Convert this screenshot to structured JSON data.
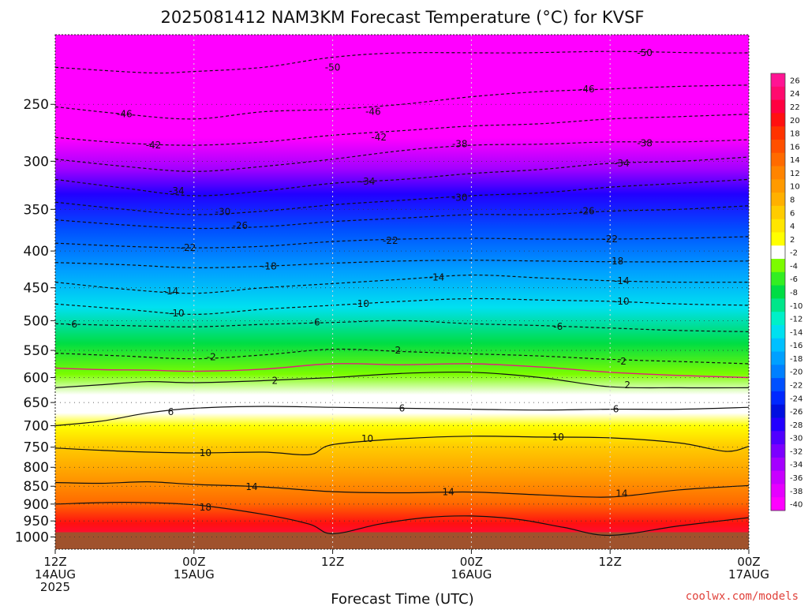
{
  "chart_data": {
    "type": "area",
    "title": "2025081412 NAM3KM Forecast Temperature (°C) for KVSF",
    "xlabel": "Forecast Time (UTC)",
    "ylabel": "",
    "credit": "coolwx.com/models",
    "x_ticks": [
      {
        "hour": 0,
        "line1": "12Z",
        "line2": "14AUG",
        "line3": "2025"
      },
      {
        "hour": 12,
        "line1": "00Z",
        "line2": "15AUG",
        "line3": ""
      },
      {
        "hour": 24,
        "line1": "12Z",
        "line2": "",
        "line3": ""
      },
      {
        "hour": 36,
        "line1": "00Z",
        "line2": "16AUG",
        "line3": ""
      },
      {
        "hour": 48,
        "line1": "12Z",
        "line2": "",
        "line3": ""
      },
      {
        "hour": 60,
        "line1": "00Z",
        "line2": "17AUG",
        "line3": ""
      }
    ],
    "xlim": [
      0,
      60
    ],
    "y_ticks": [
      250,
      300,
      350,
      400,
      450,
      500,
      550,
      600,
      650,
      700,
      750,
      800,
      850,
      900,
      950,
      1000
    ],
    "ylim": [
      1040,
      200
    ],
    "y_scale": "log-pressure",
    "colorbar": {
      "labels": [
        26,
        24,
        22,
        20,
        18,
        16,
        14,
        12,
        10,
        8,
        6,
        4,
        2,
        -2,
        -4,
        -6,
        -8,
        -10,
        -12,
        -14,
        -16,
        -18,
        -20,
        -22,
        -24,
        -26,
        -28,
        -30,
        -32,
        -34,
        -36,
        -38,
        -40
      ],
      "colors": [
        "#ff1493",
        "#ff0a6e",
        "#ff0040",
        "#ff1010",
        "#ff3300",
        "#ff5000",
        "#ff6a00",
        "#ff8400",
        "#ff9a00",
        "#ffb000",
        "#ffcc00",
        "#ffe600",
        "#ffff00",
        "#ffffff",
        "#7cfc00",
        "#33ee22",
        "#00dd44",
        "#00e68a",
        "#00f0c8",
        "#00e0f0",
        "#00c0ff",
        "#00a0ff",
        "#0080ff",
        "#0050ff",
        "#0028ff",
        "#0010e0",
        "#2200ff",
        "#5000ff",
        "#7c00ff",
        "#a400ff",
        "#c800ff",
        "#e600ff",
        "#ff00ff"
      ]
    },
    "series": [
      {
        "level": -50,
        "points": [
          [
            0,
            222
          ],
          [
            8,
            226
          ],
          [
            12,
            225
          ],
          [
            18,
            222
          ],
          [
            24,
            215
          ],
          [
            30,
            212
          ],
          [
            40,
            212
          ],
          [
            48,
            211
          ],
          [
            56,
            212
          ],
          [
            60,
            212
          ]
        ]
      },
      {
        "level": -46,
        "points": [
          [
            0,
            252
          ],
          [
            6,
            258
          ],
          [
            12,
            262
          ],
          [
            18,
            256
          ],
          [
            24,
            254
          ],
          [
            30,
            250
          ],
          [
            36,
            244
          ],
          [
            42,
            240
          ],
          [
            48,
            238
          ],
          [
            54,
            236
          ],
          [
            60,
            235
          ]
        ]
      },
      {
        "level": -42,
        "points": [
          [
            0,
            278
          ],
          [
            6,
            283
          ],
          [
            12,
            285
          ],
          [
            18,
            282
          ],
          [
            24,
            276
          ],
          [
            30,
            272
          ],
          [
            36,
            268
          ],
          [
            42,
            266
          ],
          [
            48,
            262
          ],
          [
            54,
            260
          ],
          [
            60,
            258
          ]
        ]
      },
      {
        "level": -38,
        "points": [
          [
            0,
            298
          ],
          [
            6,
            305
          ],
          [
            12,
            310
          ],
          [
            18,
            305
          ],
          [
            24,
            298
          ],
          [
            30,
            290
          ],
          [
            36,
            285
          ],
          [
            42,
            284
          ],
          [
            48,
            282
          ],
          [
            54,
            282
          ],
          [
            60,
            280
          ]
        ]
      },
      {
        "level": -34,
        "points": [
          [
            0,
            318
          ],
          [
            6,
            327
          ],
          [
            12,
            335
          ],
          [
            18,
            330
          ],
          [
            24,
            322
          ],
          [
            30,
            318
          ],
          [
            36,
            312
          ],
          [
            42,
            308
          ],
          [
            48,
            302
          ],
          [
            54,
            300
          ],
          [
            60,
            296
          ]
        ]
      },
      {
        "level": -30,
        "points": [
          [
            0,
            342
          ],
          [
            6,
            350
          ],
          [
            12,
            356
          ],
          [
            18,
            352
          ],
          [
            24,
            345
          ],
          [
            30,
            340
          ],
          [
            36,
            335
          ],
          [
            42,
            332
          ],
          [
            48,
            326
          ],
          [
            54,
            322
          ],
          [
            60,
            318
          ]
        ]
      },
      {
        "level": -26,
        "points": [
          [
            0,
            362
          ],
          [
            6,
            368
          ],
          [
            12,
            372
          ],
          [
            18,
            370
          ],
          [
            24,
            364
          ],
          [
            30,
            360
          ],
          [
            36,
            356
          ],
          [
            42,
            356
          ],
          [
            48,
            352
          ],
          [
            54,
            350
          ],
          [
            60,
            346
          ]
        ]
      },
      {
        "level": -22,
        "points": [
          [
            0,
            390
          ],
          [
            6,
            394
          ],
          [
            12,
            396
          ],
          [
            18,
            394
          ],
          [
            24,
            388
          ],
          [
            30,
            385
          ],
          [
            36,
            384
          ],
          [
            42,
            385
          ],
          [
            48,
            385
          ],
          [
            54,
            384
          ],
          [
            60,
            382
          ]
        ]
      },
      {
        "level": -18,
        "points": [
          [
            0,
            415
          ],
          [
            6,
            418
          ],
          [
            12,
            422
          ],
          [
            18,
            420
          ],
          [
            24,
            416
          ],
          [
            30,
            413
          ],
          [
            36,
            412
          ],
          [
            42,
            413
          ],
          [
            48,
            414
          ],
          [
            54,
            414
          ],
          [
            60,
            413
          ]
        ]
      },
      {
        "level": -14,
        "points": [
          [
            0,
            442
          ],
          [
            6,
            452
          ],
          [
            12,
            458
          ],
          [
            18,
            450
          ],
          [
            24,
            444
          ],
          [
            30,
            438
          ],
          [
            36,
            432
          ],
          [
            42,
            436
          ],
          [
            48,
            440
          ],
          [
            54,
            442
          ],
          [
            60,
            442
          ]
        ]
      },
      {
        "level": -10,
        "points": [
          [
            0,
            474
          ],
          [
            6,
            482
          ],
          [
            12,
            490
          ],
          [
            18,
            482
          ],
          [
            24,
            476
          ],
          [
            30,
            470
          ],
          [
            36,
            466
          ],
          [
            42,
            468
          ],
          [
            48,
            470
          ],
          [
            54,
            474
          ],
          [
            60,
            476
          ]
        ]
      },
      {
        "level": -6,
        "points": [
          [
            0,
            505
          ],
          [
            6,
            508
          ],
          [
            12,
            510
          ],
          [
            18,
            506
          ],
          [
            24,
            503
          ],
          [
            30,
            500
          ],
          [
            36,
            505
          ],
          [
            42,
            508
          ],
          [
            48,
            512
          ],
          [
            54,
            516
          ],
          [
            60,
            518
          ]
        ]
      },
      {
        "level": -2,
        "points": [
          [
            0,
            555
          ],
          [
            6,
            560
          ],
          [
            12,
            565
          ],
          [
            18,
            558
          ],
          [
            24,
            548
          ],
          [
            30,
            552
          ],
          [
            36,
            556
          ],
          [
            42,
            560
          ],
          [
            48,
            566
          ],
          [
            54,
            570
          ],
          [
            60,
            574
          ]
        ]
      },
      {
        "level": 2,
        "points": [
          [
            0,
            620
          ],
          [
            4,
            614
          ],
          [
            8,
            608
          ],
          [
            12,
            610
          ],
          [
            18,
            606
          ],
          [
            24,
            600
          ],
          [
            30,
            592
          ],
          [
            36,
            590
          ],
          [
            42,
            600
          ],
          [
            48,
            618
          ],
          [
            54,
            620
          ],
          [
            60,
            620
          ]
        ]
      },
      {
        "level": 6,
        "points": [
          [
            0,
            700
          ],
          [
            4,
            690
          ],
          [
            8,
            672
          ],
          [
            12,
            662
          ],
          [
            18,
            658
          ],
          [
            24,
            660
          ],
          [
            30,
            662
          ],
          [
            36,
            664
          ],
          [
            42,
            666
          ],
          [
            48,
            664
          ],
          [
            54,
            664
          ],
          [
            60,
            660
          ]
        ]
      },
      {
        "level": 10,
        "points": [
          [
            0,
            752
          ],
          [
            6,
            760
          ],
          [
            12,
            764
          ],
          [
            18,
            762
          ],
          [
            22,
            768
          ],
          [
            24,
            744
          ],
          [
            30,
            730
          ],
          [
            36,
            724
          ],
          [
            42,
            726
          ],
          [
            48,
            728
          ],
          [
            54,
            740
          ],
          [
            58,
            760
          ],
          [
            60,
            748
          ]
        ]
      },
      {
        "level": 14,
        "points": [
          [
            0,
            840
          ],
          [
            4,
            842
          ],
          [
            8,
            838
          ],
          [
            12,
            845
          ],
          [
            18,
            852
          ],
          [
            24,
            865
          ],
          [
            30,
            868
          ],
          [
            36,
            866
          ],
          [
            42,
            874
          ],
          [
            48,
            880
          ],
          [
            54,
            860
          ],
          [
            60,
            848
          ]
        ]
      },
      {
        "level": 18,
        "points": [
          [
            0,
            900
          ],
          [
            6,
            895
          ],
          [
            12,
            902
          ],
          [
            18,
            930
          ],
          [
            22,
            960
          ],
          [
            24,
            990
          ],
          [
            28,
            960
          ],
          [
            32,
            940
          ],
          [
            36,
            935
          ],
          [
            40,
            945
          ],
          [
            44,
            970
          ],
          [
            48,
            995
          ],
          [
            54,
            965
          ],
          [
            60,
            940
          ]
        ]
      }
    ],
    "freezing_line": [
      [
        0,
        582
      ],
      [
        4,
        585
      ],
      [
        8,
        586
      ],
      [
        12,
        588
      ],
      [
        18,
        584
      ],
      [
        24,
        574
      ],
      [
        30,
        576
      ],
      [
        36,
        574
      ],
      [
        42,
        580
      ],
      [
        48,
        590
      ],
      [
        54,
        596
      ],
      [
        60,
        600
      ]
    ],
    "contour_labels": [
      {
        "text": "-50",
        "x": 24,
        "p": 222
      },
      {
        "text": "-50",
        "x": 51,
        "p": 212
      },
      {
        "text": "-46",
        "x": 6,
        "p": 258
      },
      {
        "text": "-46",
        "x": 27.5,
        "p": 256
      },
      {
        "text": "-46",
        "x": 46,
        "p": 238
      },
      {
        "text": "-42",
        "x": 8.5,
        "p": 285
      },
      {
        "text": "-42",
        "x": 28,
        "p": 278
      },
      {
        "text": "-38",
        "x": 35,
        "p": 284
      },
      {
        "text": "-38",
        "x": 51,
        "p": 283
      },
      {
        "text": "-34",
        "x": 10.5,
        "p": 330
      },
      {
        "text": "-34",
        "x": 27,
        "p": 320
      },
      {
        "text": "-34",
        "x": 49,
        "p": 302
      },
      {
        "text": "-30",
        "x": 14.5,
        "p": 353
      },
      {
        "text": "-30",
        "x": 35,
        "p": 337
      },
      {
        "text": "-26",
        "x": 16,
        "p": 369
      },
      {
        "text": "-26",
        "x": 46,
        "p": 352
      },
      {
        "text": "-22",
        "x": 11.5,
        "p": 396
      },
      {
        "text": "-22",
        "x": 29,
        "p": 387
      },
      {
        "text": "-22",
        "x": 48,
        "p": 385
      },
      {
        "text": "-18",
        "x": 18.5,
        "p": 420
      },
      {
        "text": "-18",
        "x": 48.5,
        "p": 413
      },
      {
        "text": "-14",
        "x": 10,
        "p": 455
      },
      {
        "text": "-14",
        "x": 33,
        "p": 435
      },
      {
        "text": "-14",
        "x": 49,
        "p": 440
      },
      {
        "text": "-10",
        "x": 10.5,
        "p": 488
      },
      {
        "text": "-10",
        "x": 26.5,
        "p": 474
      },
      {
        "text": "-10",
        "x": 49,
        "p": 470
      },
      {
        "text": "-6",
        "x": 1.5,
        "p": 506
      },
      {
        "text": "-6",
        "x": 22.5,
        "p": 503
      },
      {
        "text": "-6",
        "x": 43.5,
        "p": 510
      },
      {
        "text": "-2",
        "x": 13.5,
        "p": 562
      },
      {
        "text": "-2",
        "x": 29.5,
        "p": 550
      },
      {
        "text": "2",
        "x": 19,
        "p": 606
      },
      {
        "text": "2",
        "x": 49.5,
        "p": 615
      },
      {
        "text": "-2",
        "x": 49,
        "p": 570
      },
      {
        "text": "6",
        "x": 10,
        "p": 670
      },
      {
        "text": "6",
        "x": 30,
        "p": 662
      },
      {
        "text": "6",
        "x": 48.5,
        "p": 664
      },
      {
        "text": "10",
        "x": 13,
        "p": 764
      },
      {
        "text": "10",
        "x": 27,
        "p": 730
      },
      {
        "text": "10",
        "x": 43.5,
        "p": 726
      },
      {
        "text": "14",
        "x": 17,
        "p": 852
      },
      {
        "text": "14",
        "x": 34,
        "p": 866
      },
      {
        "text": "14",
        "x": 49,
        "p": 870
      },
      {
        "text": "18",
        "x": 13,
        "p": 910
      }
    ],
    "surface_pressure": 985,
    "grid": true
  }
}
